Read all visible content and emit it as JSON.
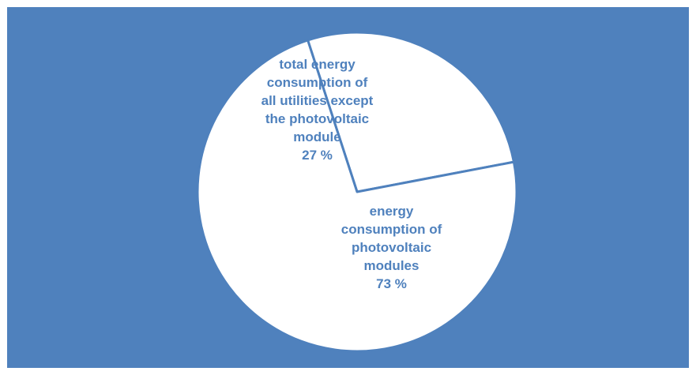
{
  "chart_data": {
    "type": "pie",
    "title": "",
    "colors": {
      "background": "#4f81bd",
      "slice_fill": "#ffffff",
      "slice_border": "#4f81bd",
      "label_text": "#4f81bd"
    },
    "slices": [
      {
        "label_lines": [
          "total energy",
          "consumption of",
          "all utilities except",
          "the photovoltaic",
          "module"
        ],
        "value": 27,
        "value_label": "27 %"
      },
      {
        "label_lines": [
          "energy",
          "consumption of",
          "photovoltaic",
          "modules"
        ],
        "value": 73,
        "value_label": "73 %"
      }
    ]
  }
}
